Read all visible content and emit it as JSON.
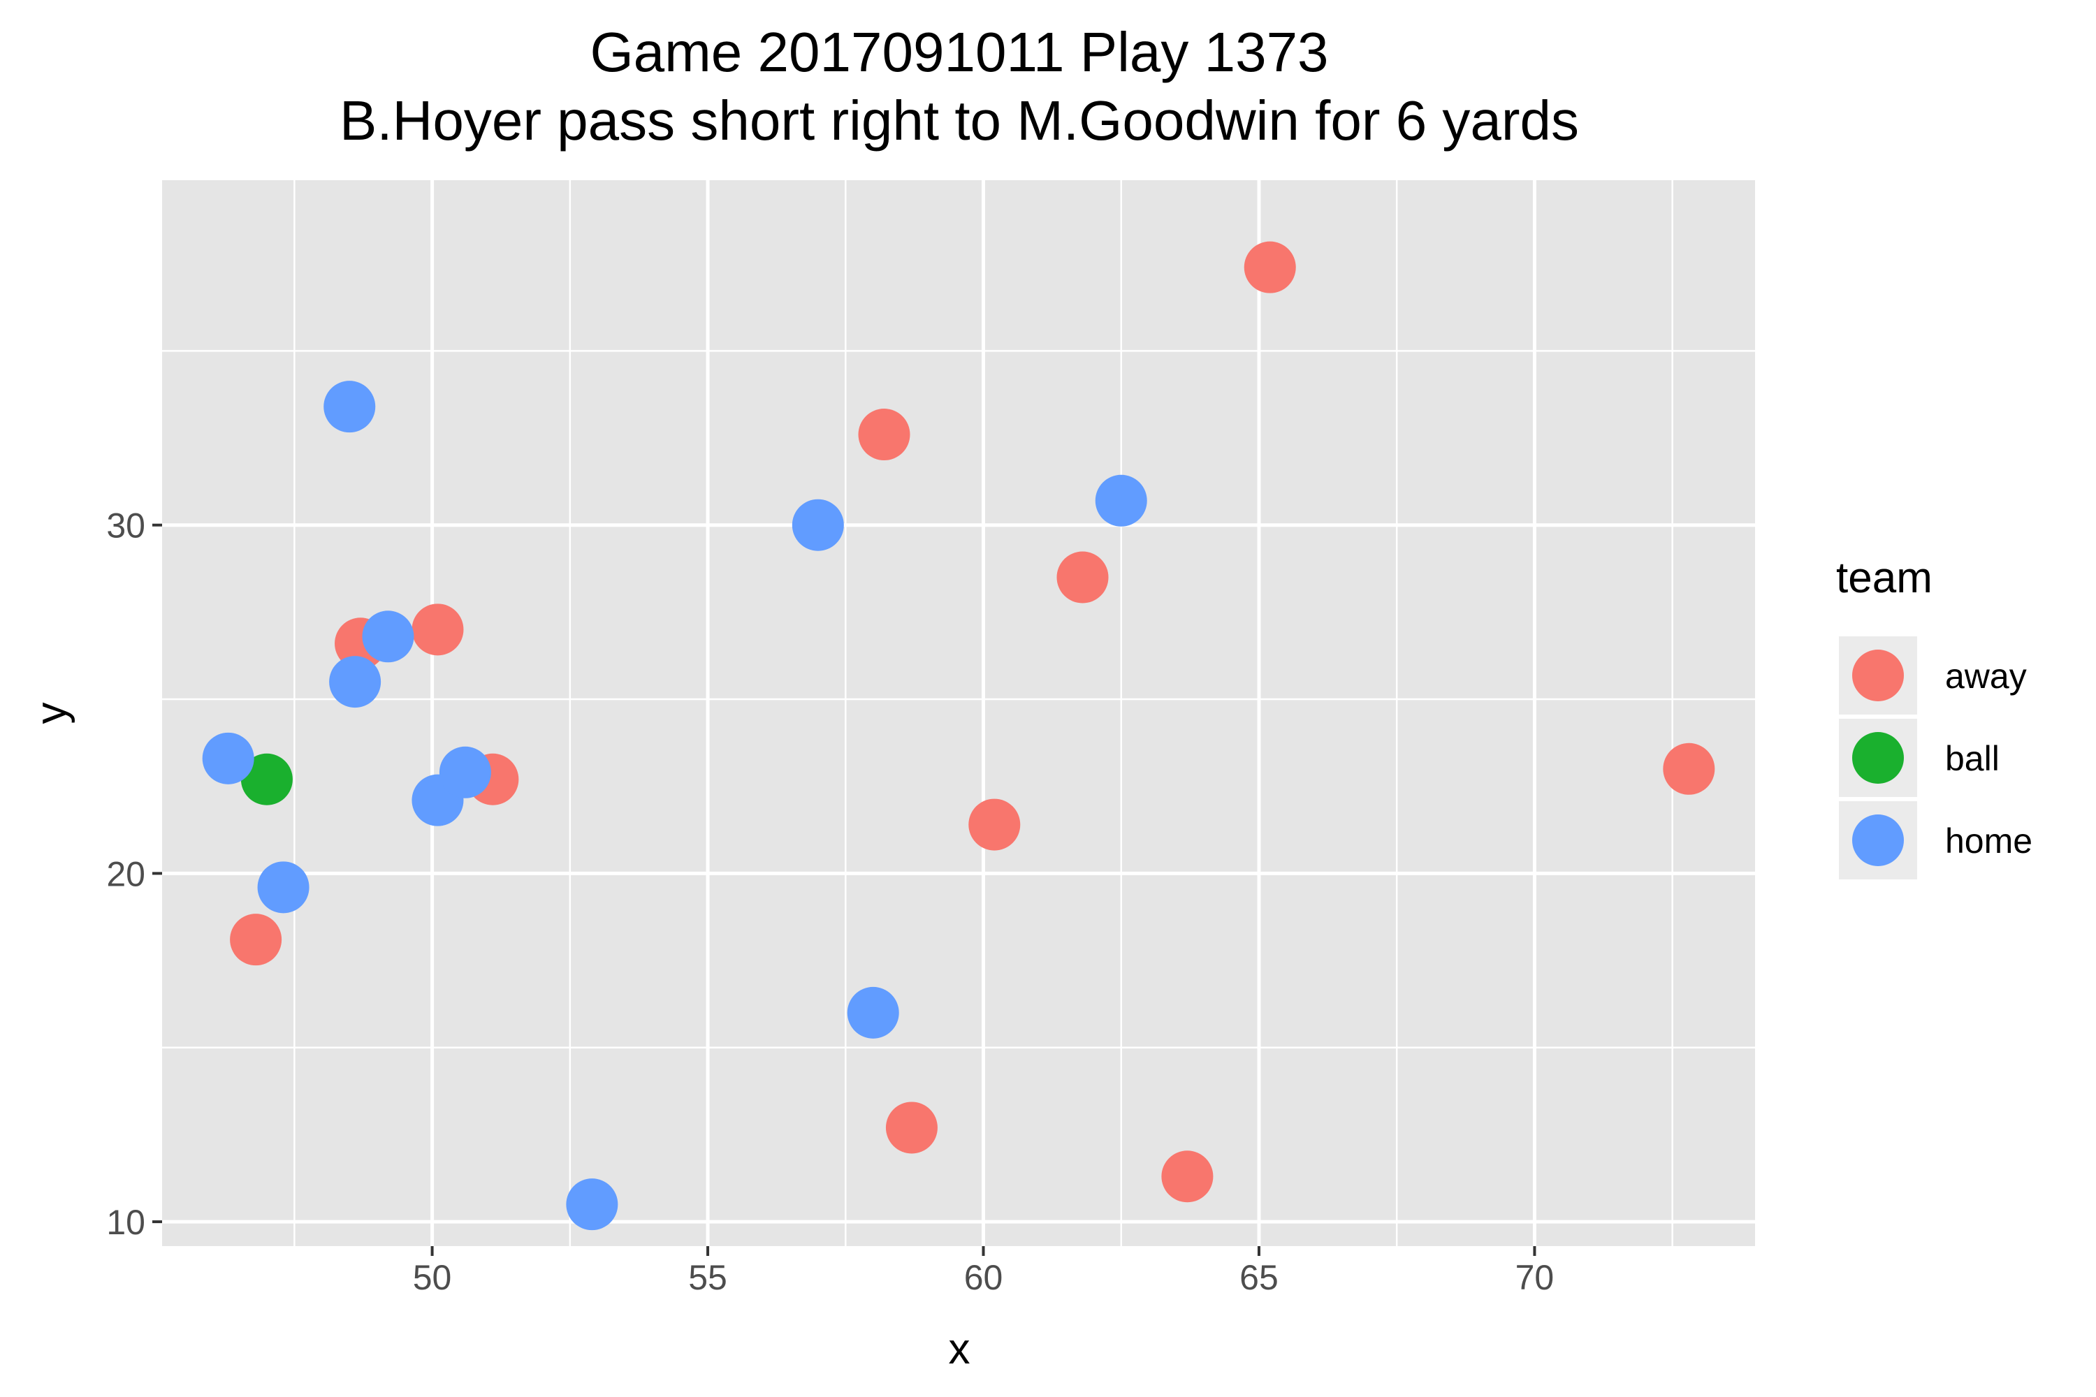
{
  "chart_data": {
    "type": "scatter",
    "title": "Game 2017091011 Play 1373",
    "subtitle": "B.Hoyer pass short right to M.Goodwin for 6 yards",
    "xlabel": "x",
    "ylabel": "y",
    "xlim": [
      45.1,
      74.0
    ],
    "ylim": [
      9.3,
      39.9
    ],
    "x_ticks": [
      50,
      55,
      60,
      65,
      70
    ],
    "y_ticks": [
      10,
      20,
      30
    ],
    "grid": true,
    "legend": {
      "title": "team",
      "position": "right",
      "entries": [
        "away",
        "ball",
        "home"
      ]
    },
    "colors": {
      "away": "#F8766D",
      "ball": "#1AB02E",
      "home": "#619CFF",
      "panel_background": "#E5E5E5",
      "grid": "#FFFFFF"
    },
    "series": [
      {
        "name": "away",
        "points": [
          {
            "x": 46.8,
            "y": 18.1
          },
          {
            "x": 48.7,
            "y": 26.6
          },
          {
            "x": 50.1,
            "y": 27.0
          },
          {
            "x": 51.1,
            "y": 22.7
          },
          {
            "x": 58.2,
            "y": 32.6
          },
          {
            "x": 58.7,
            "y": 12.7
          },
          {
            "x": 60.2,
            "y": 21.4
          },
          {
            "x": 61.8,
            "y": 28.5
          },
          {
            "x": 63.7,
            "y": 11.3
          },
          {
            "x": 65.2,
            "y": 37.4
          },
          {
            "x": 72.8,
            "y": 23.0
          }
        ]
      },
      {
        "name": "ball",
        "points": [
          {
            "x": 47.0,
            "y": 22.7
          }
        ]
      },
      {
        "name": "home",
        "points": [
          {
            "x": 46.3,
            "y": 23.3
          },
          {
            "x": 47.3,
            "y": 19.6
          },
          {
            "x": 48.5,
            "y": 33.4
          },
          {
            "x": 48.6,
            "y": 25.5
          },
          {
            "x": 49.2,
            "y": 26.8
          },
          {
            "x": 50.1,
            "y": 22.1
          },
          {
            "x": 50.6,
            "y": 22.9
          },
          {
            "x": 52.9,
            "y": 10.5
          },
          {
            "x": 57.0,
            "y": 30.0
          },
          {
            "x": 58.0,
            "y": 16.0
          },
          {
            "x": 62.5,
            "y": 30.7
          }
        ]
      }
    ]
  }
}
